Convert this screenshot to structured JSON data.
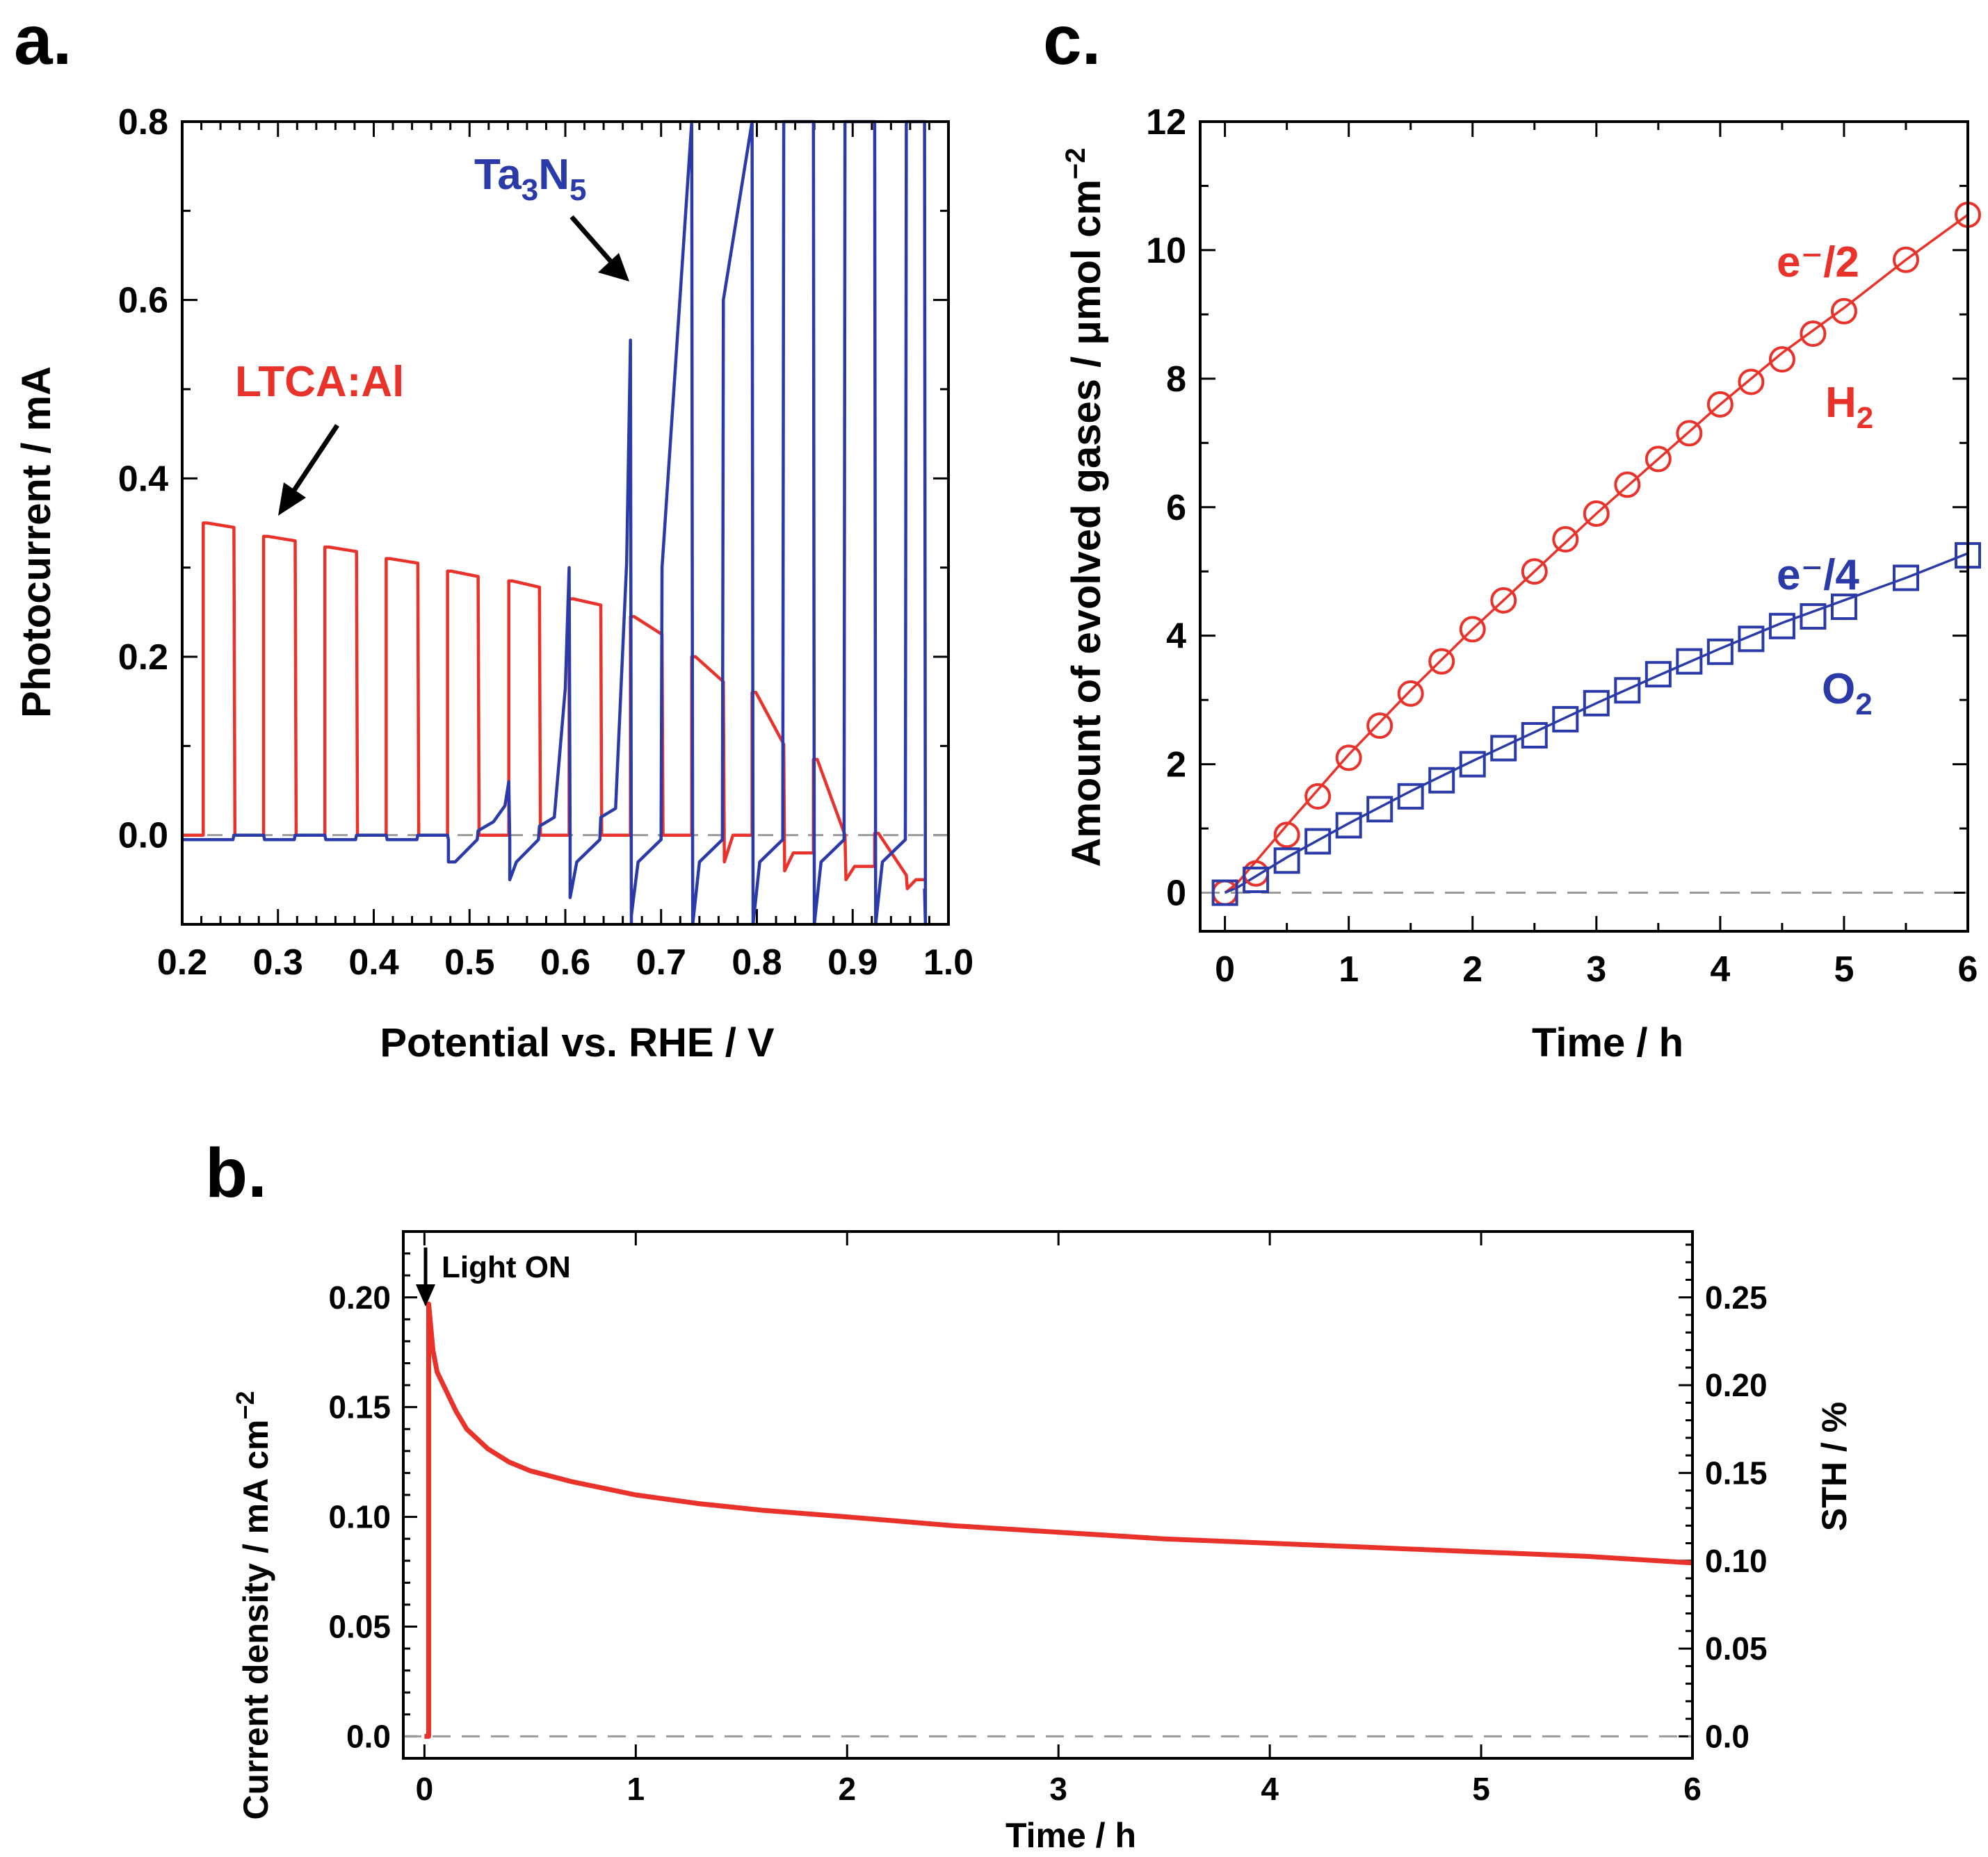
{
  "colors": {
    "red": "#e8322a",
    "blue": "#2a3aa8",
    "gray": "#9a9a9a",
    "black": "#000000"
  },
  "chart_data": [
    {
      "panel": "a.",
      "type": "line",
      "xlabel": "Potential vs. RHE / V",
      "ylabel": "Photocurrent / mA",
      "xlim": [
        0.2,
        1.0
      ],
      "ylim": [
        -0.1,
        0.8
      ],
      "xticks": [
        "0.2",
        "0.3",
        "0.4",
        "0.5",
        "0.6",
        "0.7",
        "0.8",
        "0.9",
        "1.0"
      ],
      "yticks": [
        "0.0",
        "0.2",
        "0.4",
        "0.6",
        "0.8"
      ],
      "annotations": [
        {
          "text": "LTCA:Al",
          "color": "red"
        },
        {
          "text": "Ta",
          "sub1": "3",
          "mid": "N",
          "sub2": "5",
          "color": "blue"
        }
      ],
      "series": [
        {
          "name": "LTCA:Al",
          "color": "red",
          "chopped_light": true,
          "on_segments": [
            {
              "x_on": 0.222,
              "x_off": 0.254,
              "i_on": 0.35,
              "i_off": 0.345
            },
            {
              "x_on": 0.285,
              "x_off": 0.318,
              "i_on": 0.335,
              "i_off": 0.33
            },
            {
              "x_on": 0.349,
              "x_off": 0.382,
              "i_on": 0.323,
              "i_off": 0.318
            },
            {
              "x_on": 0.413,
              "x_off": 0.446,
              "i_on": 0.31,
              "i_off": 0.305
            },
            {
              "x_on": 0.477,
              "x_off": 0.509,
              "i_on": 0.296,
              "i_off": 0.29
            },
            {
              "x_on": 0.541,
              "x_off": 0.573,
              "i_on": 0.285,
              "i_off": 0.278
            },
            {
              "x_on": 0.604,
              "x_off": 0.637,
              "i_on": 0.265,
              "i_off": 0.258
            },
            {
              "x_on": 0.668,
              "x_off": 0.701,
              "i_on": 0.245,
              "i_off": 0.225
            },
            {
              "x_on": 0.732,
              "x_off": 0.765,
              "i_on": 0.2,
              "i_off": 0.172
            },
            {
              "x_on": 0.795,
              "x_off": 0.828,
              "i_on": 0.16,
              "i_off": 0.102
            },
            {
              "x_on": 0.859,
              "x_off": 0.892,
              "i_on": 0.085,
              "i_off": 0.0
            },
            {
              "x_on": 0.923,
              "x_off": 0.956,
              "i_on": 0.002,
              "i_off": -0.045
            }
          ]
        },
        {
          "name": "Ta3N5",
          "color": "blue",
          "chopped_light": true,
          "on_segments": [
            {
              "x_on": 0.254,
              "x_off": 0.285,
              "i_on": 0.0,
              "i_off": 0.0
            },
            {
              "x_on": 0.318,
              "x_off": 0.349,
              "i_on": 0.0,
              "i_off": 0.0
            },
            {
              "x_on": 0.382,
              "x_off": 0.413,
              "i_on": 0.0,
              "i_off": 0.0
            },
            {
              "x_on": 0.446,
              "x_off": 0.477,
              "i_on": 0.0,
              "i_off": 0.0
            },
            {
              "x_on": 0.509,
              "x_off": 0.541,
              "i_on": 0.005,
              "i_off": 0.06
            },
            {
              "x_on": 0.573,
              "x_off": 0.604,
              "i_on": 0.01,
              "i_off": 0.3
            },
            {
              "x_on": 0.637,
              "x_off": 0.668,
              "i_on": 0.02,
              "i_off": 0.555
            },
            {
              "x_on": 0.701,
              "x_off": 0.732,
              "i_on": 0.3,
              "i_off": 0.8
            },
            {
              "x_on": 0.765,
              "x_off": 0.795,
              "i_on": 0.6,
              "i_off": 0.8
            },
            {
              "x_on": 0.828,
              "x_off": 0.859,
              "i_on": 0.8,
              "i_off": 0.8
            },
            {
              "x_on": 0.892,
              "x_off": 0.923,
              "i_on": 0.8,
              "i_off": 0.8
            },
            {
              "x_on": 0.956,
              "x_off": 0.975,
              "i_on": 0.8,
              "i_off": 0.8
            }
          ]
        }
      ]
    },
    {
      "panel": "b.",
      "type": "line",
      "xlabel": "Time / h",
      "ylabel": "Current density / mA cm",
      "ylabel_sup": "−2",
      "y2label": "STH / %",
      "xlim": [
        -0.1,
        6.0
      ],
      "ylim": [
        -0.01,
        0.23
      ],
      "y2lim": [
        -0.0125,
        0.2875
      ],
      "xticks": [
        "0",
        "1",
        "2",
        "3",
        "4",
        "5",
        "6"
      ],
      "yticks": [
        "0.0",
        "0.05",
        "0.10",
        "0.15",
        "0.20"
      ],
      "y2ticks": [
        "0.0",
        "0.05",
        "0.10",
        "0.15",
        "0.20",
        "0.25"
      ],
      "annotation": "Light ON",
      "series": [
        {
          "name": "current density",
          "color": "red",
          "x": [
            0.0,
            0.02,
            0.02,
            0.04,
            0.06,
            0.1,
            0.15,
            0.2,
            0.3,
            0.4,
            0.5,
            0.7,
            1.0,
            1.3,
            1.6,
            2.0,
            2.5,
            3.0,
            3.5,
            4.0,
            4.5,
            5.0,
            5.5,
            6.0
          ],
          "y": [
            0.0,
            0.0,
            0.197,
            0.176,
            0.166,
            0.158,
            0.148,
            0.14,
            0.131,
            0.125,
            0.121,
            0.116,
            0.11,
            0.106,
            0.103,
            0.1,
            0.096,
            0.093,
            0.09,
            0.088,
            0.086,
            0.084,
            0.082,
            0.079
          ]
        }
      ]
    },
    {
      "panel": "c.",
      "type": "scatter",
      "xlabel": "Time / h",
      "ylabel": "Amount of evolved gases / μmol cm",
      "ylabel_sup": "−2",
      "xlim": [
        -0.2,
        6.0
      ],
      "ylim": [
        -0.6,
        12.0
      ],
      "xticks": [
        "0",
        "1",
        "2",
        "3",
        "4",
        "5",
        "6"
      ],
      "yticks": [
        "0",
        "2",
        "4",
        "6",
        "8",
        "10",
        "12"
      ],
      "annotations": [
        {
          "text": "e⁻/2",
          "color": "red"
        },
        {
          "text": "H",
          "sub": "2",
          "color": "red"
        },
        {
          "text": "e⁻/4",
          "color": "blue"
        },
        {
          "text": "O",
          "sub": "2",
          "color": "blue"
        }
      ],
      "series": [
        {
          "name": "e⁻/2",
          "kind": "line",
          "color": "red",
          "x": [
            0.0,
            0.1,
            0.5,
            1.0,
            1.5,
            2.0,
            2.5,
            3.0,
            3.5,
            4.0,
            4.5,
            5.0,
            5.5,
            6.0
          ],
          "y": [
            0.0,
            0.15,
            1.05,
            2.15,
            3.15,
            4.1,
            5.0,
            5.9,
            6.75,
            7.6,
            8.4,
            9.1,
            9.85,
            10.55
          ]
        },
        {
          "name": "H2",
          "kind": "marker",
          "marker": "circle",
          "color": "red",
          "x": [
            0.0,
            0.25,
            0.5,
            0.75,
            1.0,
            1.25,
            1.5,
            1.75,
            2.0,
            2.25,
            2.5,
            2.75,
            3.0,
            3.25,
            3.5,
            3.75,
            4.0,
            4.25,
            4.5,
            4.75,
            5.0,
            5.5,
            6.0
          ],
          "y": [
            0.0,
            0.3,
            0.9,
            1.5,
            2.1,
            2.6,
            3.1,
            3.6,
            4.1,
            4.55,
            5.0,
            5.5,
            5.9,
            6.35,
            6.75,
            7.15,
            7.6,
            7.95,
            8.3,
            8.7,
            9.05,
            9.85,
            10.55
          ]
        },
        {
          "name": "e⁻/4",
          "kind": "line",
          "color": "blue",
          "x": [
            0.0,
            0.1,
            0.5,
            1.0,
            1.5,
            2.0,
            2.5,
            3.0,
            3.5,
            4.0,
            4.5,
            5.0,
            5.5,
            6.0
          ],
          "y": [
            0.0,
            0.08,
            0.55,
            1.08,
            1.58,
            2.05,
            2.5,
            2.95,
            3.38,
            3.8,
            4.2,
            4.55,
            4.9,
            5.28
          ]
        },
        {
          "name": "O2",
          "kind": "marker",
          "marker": "square",
          "color": "blue",
          "x": [
            0.0,
            0.25,
            0.5,
            0.75,
            1.0,
            1.25,
            1.5,
            1.75,
            2.0,
            2.25,
            2.5,
            2.75,
            3.0,
            3.25,
            3.5,
            3.75,
            4.0,
            4.25,
            4.5,
            4.75,
            5.0,
            5.5,
            6.0
          ],
          "y": [
            0.0,
            0.2,
            0.5,
            0.8,
            1.05,
            1.3,
            1.5,
            1.75,
            2.0,
            2.25,
            2.45,
            2.7,
            2.95,
            3.15,
            3.4,
            3.6,
            3.75,
            3.95,
            4.15,
            4.3,
            4.45,
            4.9,
            5.25
          ]
        }
      ]
    }
  ]
}
